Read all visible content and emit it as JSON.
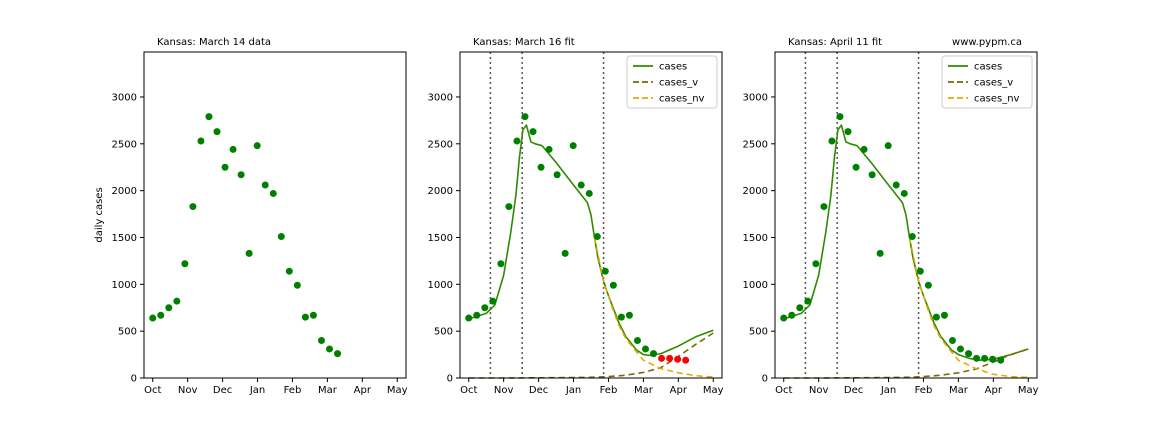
{
  "figure": {
    "watermark": "www.pypm.ca"
  },
  "chart_data": [
    {
      "type": "scatter",
      "title": "Kansas:  March 14 data",
      "xlabel": "",
      "ylabel": "daily cases",
      "xticks": [
        "Oct",
        "Nov",
        "Dec",
        "Jan",
        "Feb",
        "Mar",
        "Apr",
        "May"
      ],
      "yticks": [
        0,
        500,
        1000,
        1500,
        2000,
        2500,
        3000
      ],
      "xlim": [
        -0.25,
        7.25
      ],
      "ylim": [
        0,
        3480
      ],
      "points": [
        {
          "x": 0.0,
          "y": 640
        },
        {
          "x": 0.23,
          "y": 670
        },
        {
          "x": 0.46,
          "y": 750
        },
        {
          "x": 0.69,
          "y": 820
        },
        {
          "x": 0.92,
          "y": 1220
        },
        {
          "x": 1.15,
          "y": 1830
        },
        {
          "x": 1.38,
          "y": 2530
        },
        {
          "x": 1.61,
          "y": 2790
        },
        {
          "x": 1.84,
          "y": 2630
        },
        {
          "x": 2.07,
          "y": 2250
        },
        {
          "x": 2.3,
          "y": 2440
        },
        {
          "x": 2.53,
          "y": 2170
        },
        {
          "x": 2.76,
          "y": 1330
        },
        {
          "x": 2.99,
          "y": 2480
        },
        {
          "x": 3.22,
          "y": 2060
        },
        {
          "x": 3.45,
          "y": 1970
        },
        {
          "x": 3.68,
          "y": 1510
        },
        {
          "x": 3.91,
          "y": 1140
        },
        {
          "x": 4.14,
          "y": 990
        },
        {
          "x": 4.37,
          "y": 650
        },
        {
          "x": 4.6,
          "y": 670
        },
        {
          "x": 4.83,
          "y": 400
        },
        {
          "x": 5.06,
          "y": 310
        },
        {
          "x": 5.29,
          "y": 260
        }
      ],
      "point_color": "#008000"
    },
    {
      "type": "line",
      "title": "Kansas:  March 16 fit",
      "xticks": [
        "Oct",
        "Nov",
        "Dec",
        "Jan",
        "Feb",
        "Mar",
        "Apr",
        "May"
      ],
      "yticks": [
        0,
        500,
        1000,
        1500,
        2000,
        2500,
        3000
      ],
      "xlim": [
        -0.25,
        7.25
      ],
      "ylim": [
        0,
        3480
      ],
      "vlines": [
        0.62,
        1.53,
        3.86
      ],
      "legend": [
        "cases",
        "cases_v",
        "cases_nv"
      ],
      "legend_position": "top-right",
      "series": [
        {
          "name": "cases",
          "color": "#2e8b00",
          "style": "solid",
          "x": [
            0,
            0.5,
            0.75,
            1,
            1.2,
            1.35,
            1.45,
            1.55,
            1.65,
            1.78,
            1.9,
            2.1,
            2.5,
            3,
            3.4,
            3.5,
            3.6,
            3.7,
            3.85,
            3.95,
            4.1,
            4.3,
            4.5,
            4.8,
            5.0,
            5.2,
            5.5,
            6.0,
            6.5,
            7.0
          ],
          "y": [
            630,
            690,
            780,
            1100,
            1550,
            1950,
            2350,
            2650,
            2700,
            2520,
            2500,
            2480,
            2300,
            2060,
            1870,
            1740,
            1500,
            1280,
            1050,
            930,
            780,
            590,
            440,
            300,
            250,
            240,
            260,
            340,
            440,
            510
          ]
        },
        {
          "name": "cases_v",
          "color": "#7a6a00",
          "style": "dashed",
          "x": [
            0,
            1,
            2,
            3,
            3.5,
            4,
            4.5,
            5,
            5.5,
            6,
            6.5,
            7
          ],
          "y": [
            0,
            0,
            2,
            5,
            8,
            15,
            30,
            60,
            110,
            230,
            360,
            480
          ]
        },
        {
          "name": "cases_nv",
          "color": "#e8a800",
          "style": "dashed",
          "x": [
            3.6,
            3.85,
            4.1,
            4.3,
            4.5,
            4.8,
            5.0,
            5.5,
            6.0,
            6.5,
            7.0
          ],
          "y": [
            1500,
            1050,
            760,
            560,
            420,
            280,
            190,
            100,
            55,
            25,
            10
          ]
        }
      ],
      "points": [
        {
          "x": 0.0,
          "y": 640
        },
        {
          "x": 0.23,
          "y": 670
        },
        {
          "x": 0.46,
          "y": 750
        },
        {
          "x": 0.69,
          "y": 820
        },
        {
          "x": 0.92,
          "y": 1220
        },
        {
          "x": 1.15,
          "y": 1830
        },
        {
          "x": 1.38,
          "y": 2530
        },
        {
          "x": 1.61,
          "y": 2790
        },
        {
          "x": 1.84,
          "y": 2630
        },
        {
          "x": 2.07,
          "y": 2250
        },
        {
          "x": 2.3,
          "y": 2440
        },
        {
          "x": 2.53,
          "y": 2170
        },
        {
          "x": 2.76,
          "y": 1330
        },
        {
          "x": 2.99,
          "y": 2480
        },
        {
          "x": 3.22,
          "y": 2060
        },
        {
          "x": 3.45,
          "y": 1970
        },
        {
          "x": 3.68,
          "y": 1510
        },
        {
          "x": 3.91,
          "y": 1140
        },
        {
          "x": 4.14,
          "y": 990
        },
        {
          "x": 4.37,
          "y": 650
        },
        {
          "x": 4.6,
          "y": 670
        },
        {
          "x": 4.83,
          "y": 400
        },
        {
          "x": 5.06,
          "y": 310
        },
        {
          "x": 5.29,
          "y": 260
        }
      ],
      "red_points": [
        {
          "x": 5.52,
          "y": 210
        },
        {
          "x": 5.75,
          "y": 210
        },
        {
          "x": 5.98,
          "y": 200
        },
        {
          "x": 6.21,
          "y": 190
        }
      ],
      "point_color": "#008000",
      "red_color": "#ff0000"
    },
    {
      "type": "line",
      "title": "Kansas:  April 11 fit",
      "xticks": [
        "Oct",
        "Nov",
        "Dec",
        "Jan",
        "Feb",
        "Mar",
        "Apr",
        "May"
      ],
      "yticks": [
        0,
        500,
        1000,
        1500,
        2000,
        2500,
        3000
      ],
      "xlim": [
        -0.25,
        7.25
      ],
      "ylim": [
        0,
        3480
      ],
      "vlines": [
        0.62,
        1.53,
        3.86
      ],
      "legend": [
        "cases",
        "cases_v",
        "cases_nv"
      ],
      "legend_position": "top-right",
      "series": [
        {
          "name": "cases",
          "color": "#2e8b00",
          "style": "solid",
          "x": [
            0,
            0.5,
            0.75,
            1,
            1.2,
            1.35,
            1.45,
            1.55,
            1.65,
            1.78,
            1.9,
            2.1,
            2.5,
            3,
            3.4,
            3.5,
            3.6,
            3.7,
            3.85,
            3.95,
            4.1,
            4.3,
            4.5,
            4.8,
            5.0,
            5.3,
            5.6,
            6.0,
            6.5,
            7.0
          ],
          "y": [
            630,
            690,
            780,
            1100,
            1550,
            1950,
            2350,
            2650,
            2700,
            2520,
            2500,
            2480,
            2300,
            2060,
            1870,
            1740,
            1500,
            1280,
            1050,
            930,
            780,
            590,
            440,
            300,
            250,
            210,
            190,
            200,
            250,
            310
          ]
        },
        {
          "name": "cases_v",
          "color": "#7a6a00",
          "style": "dashed",
          "x": [
            0,
            1,
            2,
            3,
            3.5,
            4,
            4.5,
            5,
            5.5,
            6,
            6.5,
            7
          ],
          "y": [
            0,
            0,
            2,
            5,
            8,
            15,
            30,
            55,
            95,
            170,
            250,
            310
          ]
        },
        {
          "name": "cases_nv",
          "color": "#e8a800",
          "style": "dashed",
          "x": [
            3.6,
            3.85,
            4.1,
            4.3,
            4.5,
            4.8,
            5.0,
            5.5,
            6.0,
            6.5,
            7.0
          ],
          "y": [
            1500,
            1050,
            760,
            560,
            420,
            280,
            190,
            100,
            40,
            15,
            5
          ]
        }
      ],
      "points": [
        {
          "x": 0.0,
          "y": 640
        },
        {
          "x": 0.23,
          "y": 670
        },
        {
          "x": 0.46,
          "y": 750
        },
        {
          "x": 0.69,
          "y": 820
        },
        {
          "x": 0.92,
          "y": 1220
        },
        {
          "x": 1.15,
          "y": 1830
        },
        {
          "x": 1.38,
          "y": 2530
        },
        {
          "x": 1.61,
          "y": 2790
        },
        {
          "x": 1.84,
          "y": 2630
        },
        {
          "x": 2.07,
          "y": 2250
        },
        {
          "x": 2.3,
          "y": 2440
        },
        {
          "x": 2.53,
          "y": 2170
        },
        {
          "x": 2.76,
          "y": 1330
        },
        {
          "x": 2.99,
          "y": 2480
        },
        {
          "x": 3.22,
          "y": 2060
        },
        {
          "x": 3.45,
          "y": 1970
        },
        {
          "x": 3.68,
          "y": 1510
        },
        {
          "x": 3.91,
          "y": 1140
        },
        {
          "x": 4.14,
          "y": 990
        },
        {
          "x": 4.37,
          "y": 650
        },
        {
          "x": 4.6,
          "y": 670
        },
        {
          "x": 4.83,
          "y": 400
        },
        {
          "x": 5.06,
          "y": 310
        },
        {
          "x": 5.29,
          "y": 260
        },
        {
          "x": 5.52,
          "y": 210
        },
        {
          "x": 5.75,
          "y": 210
        },
        {
          "x": 5.98,
          "y": 200
        },
        {
          "x": 6.21,
          "y": 190
        }
      ],
      "point_color": "#008000"
    }
  ]
}
